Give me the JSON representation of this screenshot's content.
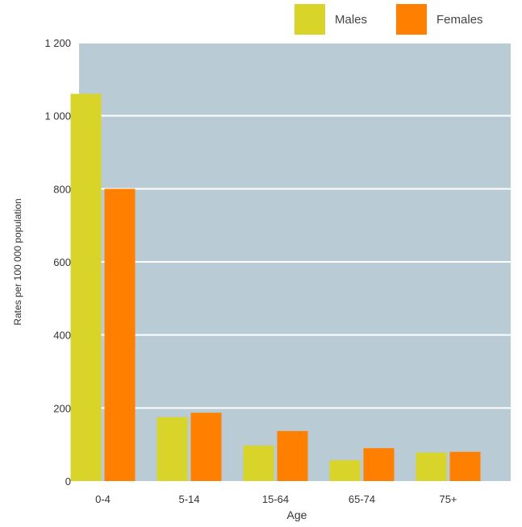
{
  "chart_data": {
    "type": "bar",
    "title": "",
    "xlabel": "Age",
    "ylabel": "Rates per 100 000 population",
    "categories": [
      "0-4",
      "5-14",
      "15-64",
      "65-74",
      "75+"
    ],
    "series": [
      {
        "name": "Males",
        "values": [
          1060,
          175,
          97,
          57,
          78
        ],
        "color": "#d8d42a"
      },
      {
        "name": "Females",
        "values": [
          800,
          187,
          137,
          90,
          80
        ],
        "color": "#ff8000"
      }
    ],
    "ylim": [
      0,
      1200
    ],
    "yticks": [
      0,
      200,
      400,
      600,
      800,
      1000,
      1200
    ],
    "ytick_labels": [
      "0",
      "200",
      "400",
      "600",
      "800",
      "1 000",
      "1 200"
    ],
    "grid": true,
    "legend_position": "top-right",
    "plot_background": "#b9ccd6"
  },
  "legend": {
    "males_label": "Males",
    "females_label": "Females"
  }
}
